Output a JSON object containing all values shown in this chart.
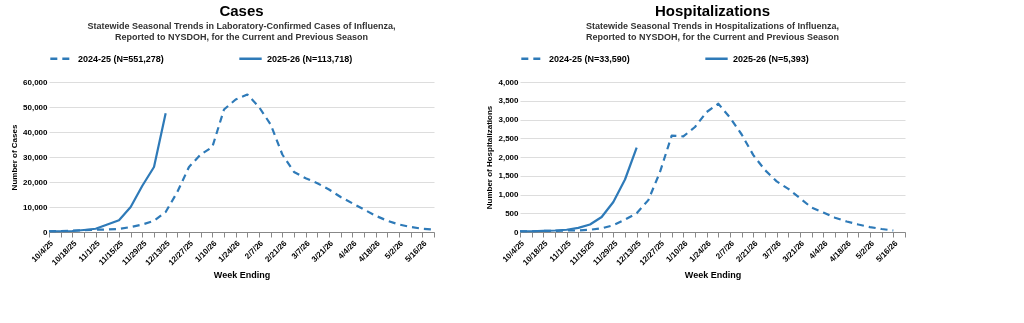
{
  "chart_data": [
    {
      "type": "line",
      "title": "Cases",
      "subtitle": "Statewide Seasonal Trends in Laboratory-Confirmed Cases of Influenza,\nReported to NYSDOH, for the Current and Previous Season",
      "xlabel": "Week Ending",
      "ylabel": "Number of Cases",
      "categories": [
        "10/4/25",
        null,
        "10/18/25",
        null,
        "11/1/25",
        null,
        "11/15/25",
        null,
        "11/29/25",
        null,
        "12/13/25",
        null,
        "12/27/25",
        null,
        "1/10/26",
        null,
        "1/24/26",
        null,
        "2/7/26",
        null,
        "2/21/26",
        null,
        "3/7/26",
        null,
        "3/21/26",
        null,
        "4/4/26",
        null,
        "4/18/26",
        null,
        "5/2/26",
        null,
        "5/16/26",
        null
      ],
      "series": [
        {
          "name": "2024-25 (N=551,278)",
          "color": "#2e7ab8",
          "line_style": "dashed",
          "values": [
            300,
            400,
            500,
            700,
            900,
            1000,
            1200,
            2000,
            3000,
            4500,
            8000,
            16000,
            26000,
            31000,
            34000,
            49000,
            53000,
            55000,
            50000,
            43000,
            31000,
            24000,
            21500,
            19500,
            17000,
            14000,
            11500,
            9000,
            6500,
            4500,
            3000,
            2000,
            1300,
            1000
          ]
        },
        {
          "name": "2025-26 (N=113,718)",
          "color": "#2e7ab8",
          "line_style": "solid",
          "values": [
            300,
            300,
            400,
            800,
            1300,
            3000,
            4700,
            10000,
            18500,
            26000,
            47500,
            null,
            null,
            null,
            null,
            null,
            null,
            null,
            null,
            null,
            null,
            null,
            null,
            null,
            null,
            null,
            null,
            null,
            null,
            null,
            null,
            null,
            null,
            null
          ]
        }
      ],
      "ylim": [
        0,
        60000
      ],
      "yticks": [
        {
          "value": 0,
          "label": "0"
        },
        {
          "value": 10000,
          "label": "10,000"
        },
        {
          "value": 20000,
          "label": "20,000"
        },
        {
          "value": 30000,
          "label": "30,000"
        },
        {
          "value": 40000,
          "label": "40,000"
        },
        {
          "value": 50000,
          "label": "50,000"
        },
        {
          "value": 60000,
          "label": "60,000"
        }
      ],
      "grid": "y",
      "legend": "top"
    },
    {
      "type": "line",
      "title": "Hospitalizations",
      "subtitle": "Statewide Seasonal Trends in Hospitalizations of Influenza,\nReported to NYSDOH, for the Current and Previous Season",
      "xlabel": "Week Ending",
      "ylabel": "Number of Hospitalizations",
      "categories": [
        "10/4/25",
        null,
        "10/18/25",
        null,
        "11/1/25",
        null,
        "11/15/25",
        null,
        "11/29/25",
        null,
        "12/13/25",
        null,
        "12/27/25",
        null,
        "1/10/26",
        null,
        "1/24/26",
        null,
        "2/7/26",
        null,
        "2/21/26",
        null,
        "3/7/26",
        null,
        "3/21/26",
        null,
        "4/4/26",
        null,
        "4/18/26",
        null,
        "5/2/26",
        null,
        "5/16/26",
        null
      ],
      "series": [
        {
          "name": "2024-25 (N=33,590)",
          "color": "#2e7ab8",
          "line_style": "dashed",
          "values": [
            20,
            20,
            30,
            30,
            40,
            40,
            60,
            100,
            180,
            330,
            500,
            850,
            1600,
            2570,
            2550,
            2800,
            3200,
            3420,
            3050,
            2600,
            2050,
            1650,
            1350,
            1150,
            900,
            650,
            520,
            380,
            280,
            200,
            130,
            80,
            40,
            null
          ]
        },
        {
          "name": "2025-26 (N=5,393)",
          "color": "#2e7ab8",
          "line_style": "solid",
          "values": [
            20,
            20,
            30,
            40,
            60,
            110,
            200,
            400,
            800,
            1400,
            2250,
            null,
            null,
            null,
            null,
            null,
            null,
            null,
            null,
            null,
            null,
            null,
            null,
            null,
            null,
            null,
            null,
            null,
            null,
            null,
            null,
            null,
            null,
            null
          ]
        }
      ],
      "ylim": [
        0,
        4000
      ],
      "yticks": [
        {
          "value": 0,
          "label": "0"
        },
        {
          "value": 500,
          "label": "500"
        },
        {
          "value": 1000,
          "label": "1,000"
        },
        {
          "value": 1500,
          "label": "1,500"
        },
        {
          "value": 2000,
          "label": "2,000"
        },
        {
          "value": 2500,
          "label": "2,500"
        },
        {
          "value": 3000,
          "label": "3,000"
        },
        {
          "value": 3500,
          "label": "3,500"
        },
        {
          "value": 4000,
          "label": "4,000"
        }
      ],
      "grid": "y",
      "legend": "top"
    }
  ]
}
